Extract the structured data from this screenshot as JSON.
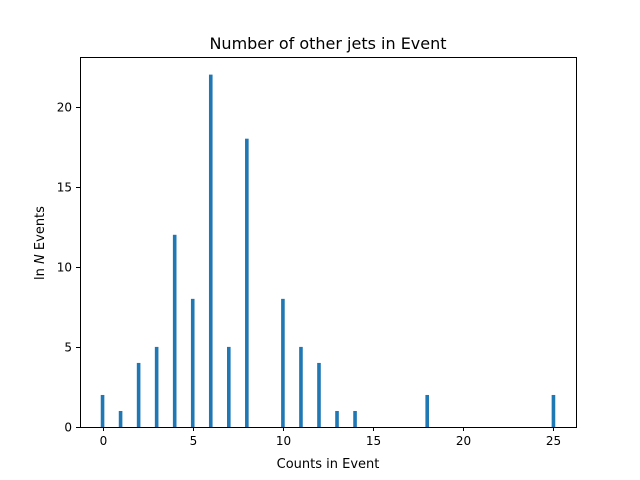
{
  "chart_data": {
    "type": "bar",
    "title": "Number of other jets in Event",
    "xlabel": "Counts in Event",
    "ylabel_prefix": "ln ",
    "ylabel_var": "N",
    "ylabel_suffix": " Events",
    "xlim": [
      -1.25,
      26.25
    ],
    "ylim": [
      0,
      23.1
    ],
    "x_ticks": [
      0,
      5,
      10,
      15,
      20,
      25
    ],
    "y_ticks": [
      0,
      5,
      10,
      15,
      20
    ],
    "bar_color": "#1f77b4",
    "grid": false,
    "bars": [
      {
        "x": 0,
        "value": 2
      },
      {
        "x": 1,
        "value": 1
      },
      {
        "x": 2,
        "value": 4
      },
      {
        "x": 3,
        "value": 5
      },
      {
        "x": 4,
        "value": 12
      },
      {
        "x": 5,
        "value": 8
      },
      {
        "x": 6,
        "value": 22
      },
      {
        "x": 7,
        "value": 5
      },
      {
        "x": 8,
        "value": 18
      },
      {
        "x": 10,
        "value": 8
      },
      {
        "x": 11,
        "value": 5
      },
      {
        "x": 12,
        "value": 4
      },
      {
        "x": 13,
        "value": 1
      },
      {
        "x": 14,
        "value": 1
      },
      {
        "x": 18,
        "value": 2
      },
      {
        "x": 25,
        "value": 2
      }
    ]
  }
}
